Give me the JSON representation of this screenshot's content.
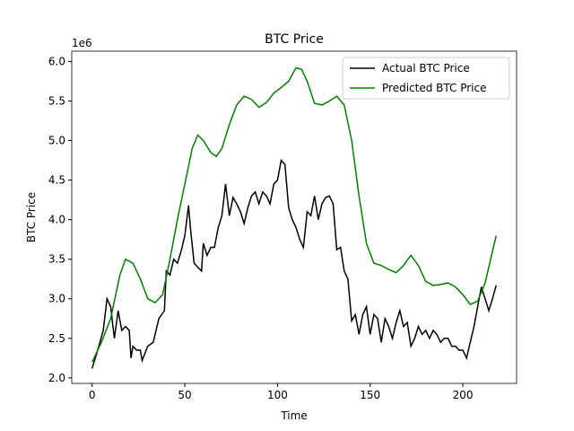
{
  "chart_data": {
    "type": "line",
    "title": "BTC Price",
    "x_label": "Time",
    "y_label": "BTC Price",
    "y_offset_label": "1e6",
    "xlim": [
      -11,
      229
    ],
    "ylim": [
      1.93,
      6.13
    ],
    "xticks": [
      0,
      50,
      100,
      150,
      200
    ],
    "yticks": [
      {
        "value": 2,
        "label": "2.0"
      },
      {
        "value": 2.5,
        "label": "2.5"
      },
      {
        "value": 3,
        "label": "3.0"
      },
      {
        "value": 3.5,
        "label": "3.5"
      },
      {
        "value": 4,
        "label": "4.0"
      },
      {
        "value": 4.5,
        "label": "4.5"
      },
      {
        "value": 5,
        "label": "5.0"
      },
      {
        "value": 5.5,
        "label": "5.5"
      },
      {
        "value": 6,
        "label": "6.0"
      }
    ],
    "legend": "upper right",
    "series": [
      {
        "name": "Actual BTC Price",
        "color": "#000000",
        "x": [
          0,
          3,
          6,
          8,
          10,
          12,
          14,
          16,
          18,
          20,
          21,
          22,
          24,
          26,
          27,
          30,
          33,
          36,
          39,
          40,
          42,
          44,
          46,
          48,
          50,
          52,
          53,
          55,
          57,
          59,
          60,
          62,
          64,
          66,
          68,
          70,
          72,
          74,
          76,
          78,
          80,
          82,
          84,
          86,
          88,
          90,
          92,
          94,
          96,
          98,
          100,
          102,
          104,
          106,
          108,
          110,
          112,
          114,
          116,
          118,
          120,
          122,
          124,
          126,
          128,
          130,
          132,
          134,
          136,
          138,
          140,
          142,
          144,
          146,
          148,
          150,
          152,
          154,
          156,
          158,
          160,
          162,
          164,
          166,
          168,
          170,
          172,
          174,
          176,
          178,
          180,
          182,
          184,
          186,
          188,
          190,
          192,
          194,
          196,
          198,
          200,
          202,
          204,
          206,
          208,
          210,
          212,
          214,
          216,
          218
        ],
        "values": [
          2.12,
          2.35,
          2.6,
          3.0,
          2.9,
          2.5,
          2.85,
          2.6,
          2.65,
          2.6,
          2.25,
          2.4,
          2.35,
          2.35,
          2.22,
          2.4,
          2.45,
          2.75,
          2.85,
          3.35,
          3.3,
          3.5,
          3.45,
          3.6,
          3.8,
          4.18,
          3.9,
          3.45,
          3.4,
          3.35,
          3.7,
          3.55,
          3.65,
          3.65,
          3.9,
          4.05,
          4.45,
          4.05,
          4.28,
          4.2,
          4.1,
          3.95,
          4.15,
          4.3,
          4.35,
          4.2,
          4.35,
          4.3,
          4.2,
          4.45,
          4.5,
          4.75,
          4.7,
          4.15,
          4.0,
          3.9,
          3.75,
          3.65,
          4.1,
          4.05,
          4.3,
          4.0,
          4.2,
          4.28,
          4.3,
          4.2,
          3.62,
          3.65,
          3.35,
          3.25,
          2.72,
          2.8,
          2.55,
          2.8,
          2.9,
          2.55,
          2.8,
          2.75,
          2.45,
          2.75,
          2.65,
          2.5,
          2.7,
          2.85,
          2.65,
          2.7,
          2.4,
          2.5,
          2.65,
          2.55,
          2.6,
          2.5,
          2.6,
          2.55,
          2.45,
          2.5,
          2.5,
          2.4,
          2.4,
          2.35,
          2.35,
          2.25,
          2.45,
          2.65,
          2.9,
          3.15,
          3.0,
          2.85,
          3.0,
          3.17
        ]
      },
      {
        "name": "Predicted BTC Price",
        "color": "#008000",
        "x": [
          0,
          5,
          10,
          15,
          18,
          22,
          26,
          30,
          34,
          38,
          42,
          46,
          50,
          54,
          57,
          60,
          64,
          67,
          70,
          74,
          78,
          82,
          86,
          90,
          94,
          98,
          102,
          106,
          110,
          113,
          116,
          120,
          124,
          128,
          132,
          136,
          140,
          144,
          148,
          152,
          156,
          160,
          164,
          168,
          172,
          176,
          180,
          184,
          188,
          192,
          196,
          200,
          204,
          208,
          212,
          216,
          218
        ],
        "values": [
          2.2,
          2.45,
          2.75,
          3.3,
          3.5,
          3.45,
          3.25,
          3.0,
          2.95,
          3.05,
          3.5,
          4.0,
          4.45,
          4.9,
          5.07,
          5.0,
          4.85,
          4.8,
          4.9,
          5.2,
          5.45,
          5.56,
          5.52,
          5.42,
          5.48,
          5.6,
          5.67,
          5.75,
          5.92,
          5.9,
          5.75,
          5.47,
          5.45,
          5.5,
          5.56,
          5.45,
          5.0,
          4.3,
          3.7,
          3.45,
          3.42,
          3.37,
          3.33,
          3.42,
          3.55,
          3.42,
          3.22,
          3.17,
          3.18,
          3.2,
          3.15,
          3.05,
          2.93,
          2.97,
          3.2,
          3.6,
          3.8
        ]
      }
    ]
  }
}
